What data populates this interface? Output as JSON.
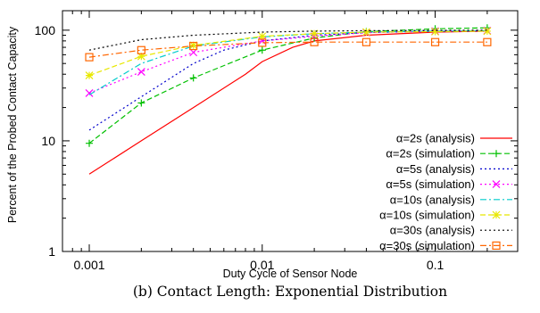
{
  "caption": "(b) Contact Length: Exponential Distribution",
  "chart_data": {
    "type": "line",
    "title": "",
    "xlabel": "Duty Cycle of Sensor Node",
    "ylabel": "Percent of the Probed Contact Capacity",
    "xscale": "log",
    "yscale": "log",
    "xlim": [
      0.0007,
      0.3
    ],
    "ylim": [
      1,
      150
    ],
    "xticks": [
      0.001,
      0.01,
      0.1
    ],
    "xtick_labels": [
      "0.001",
      "0.01",
      "0.1"
    ],
    "yticks": [
      1,
      10,
      100
    ],
    "ytick_labels": [
      "1",
      "10",
      "100"
    ],
    "grid": false,
    "legend_position": "bottom-right",
    "series": [
      {
        "name": "α=2s (analysis)",
        "color": "#ff0000",
        "dash": "solid",
        "marker": "none",
        "x": [
          0.001,
          0.002,
          0.004,
          0.008,
          0.01,
          0.015,
          0.02,
          0.04,
          0.1,
          0.2
        ],
        "y": [
          5,
          10,
          20,
          40,
          52,
          70,
          80,
          90,
          96,
          98
        ]
      },
      {
        "name": "α=2s (simulation)",
        "color": "#00c000",
        "dash": "dash",
        "marker": "plus",
        "x": [
          0.001,
          0.002,
          0.004,
          0.01,
          0.02,
          0.04,
          0.1,
          0.2
        ],
        "y": [
          9.5,
          22,
          37,
          66,
          85,
          97,
          103,
          105
        ]
      },
      {
        "name": "α=5s (analysis)",
        "color": "#0000cc",
        "dash": "dot",
        "marker": "none",
        "x": [
          0.001,
          0.002,
          0.004,
          0.006,
          0.01,
          0.02,
          0.04,
          0.1,
          0.2
        ],
        "y": [
          12.5,
          25,
          50,
          66,
          80,
          90,
          95,
          98,
          99
        ]
      },
      {
        "name": "α=5s (simulation)",
        "color": "#ff00ff",
        "dash": "dot",
        "marker": "x",
        "x": [
          0.001,
          0.002,
          0.004,
          0.01,
          0.02,
          0.04,
          0.1,
          0.2
        ],
        "y": [
          27,
          42,
          63,
          80,
          88,
          95,
          98,
          99
        ]
      },
      {
        "name": "α=10s (analysis)",
        "color": "#00cccc",
        "dash": "dashdot",
        "marker": "none",
        "x": [
          0.001,
          0.002,
          0.004,
          0.01,
          0.02,
          0.04,
          0.1,
          0.2
        ],
        "y": [
          26,
          50,
          72,
          87,
          93,
          96,
          98,
          99
        ]
      },
      {
        "name": "α=10s (simulation)",
        "color": "#e8e800",
        "dash": "dash",
        "marker": "star",
        "x": [
          0.001,
          0.002,
          0.004,
          0.01,
          0.02,
          0.04,
          0.1,
          0.2
        ],
        "y": [
          39,
          58,
          73,
          88,
          93,
          96,
          97,
          98
        ]
      },
      {
        "name": "α=30s (analysis)",
        "color": "#000000",
        "dash": "dot",
        "marker": "none",
        "x": [
          0.001,
          0.002,
          0.004,
          0.01,
          0.02,
          0.04,
          0.1,
          0.2
        ],
        "y": [
          66,
          82,
          90,
          96,
          98,
          99,
          99.5,
          100
        ]
      },
      {
        "name": "α=30s (simulation)",
        "color": "#ff6600",
        "dash": "dashdot",
        "marker": "square",
        "x": [
          0.001,
          0.002,
          0.004,
          0.01,
          0.02,
          0.04,
          0.1,
          0.2
        ],
        "y": [
          57,
          66,
          72,
          77,
          78,
          78,
          78,
          78
        ]
      }
    ]
  }
}
